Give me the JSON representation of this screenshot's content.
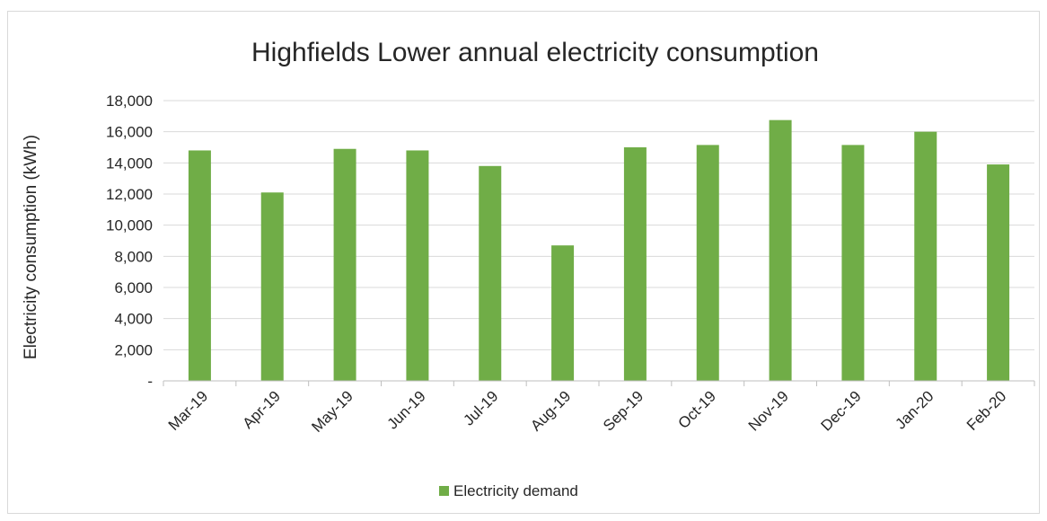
{
  "chart_data": {
    "type": "bar",
    "title": "Highfields Lower annual electricity consumption",
    "xlabel": "",
    "ylabel": "Electricity consumption (kWh)",
    "categories": [
      "Mar-19",
      "Apr-19",
      "May-19",
      "Jun-19",
      "Jul-19",
      "Aug-19",
      "Sep-19",
      "Oct-19",
      "Nov-19",
      "Dec-19",
      "Jan-20",
      "Feb-20"
    ],
    "series": [
      {
        "name": "Electricity demand",
        "color": "#70ad47",
        "values": [
          14800,
          12100,
          14900,
          14800,
          13800,
          8700,
          15000,
          15150,
          16750,
          15150,
          16000,
          13900
        ]
      }
    ],
    "ylim": [
      0,
      18000
    ],
    "yticks": [
      0,
      2000,
      4000,
      6000,
      8000,
      10000,
      12000,
      14000,
      16000,
      18000
    ],
    "ytick_labels": [
      "-",
      "2,000",
      "4,000",
      "6,000",
      "8,000",
      "10,000",
      "12,000",
      "14,000",
      "16,000",
      "18,000"
    ],
    "grid": true,
    "legend_position": "bottom"
  }
}
